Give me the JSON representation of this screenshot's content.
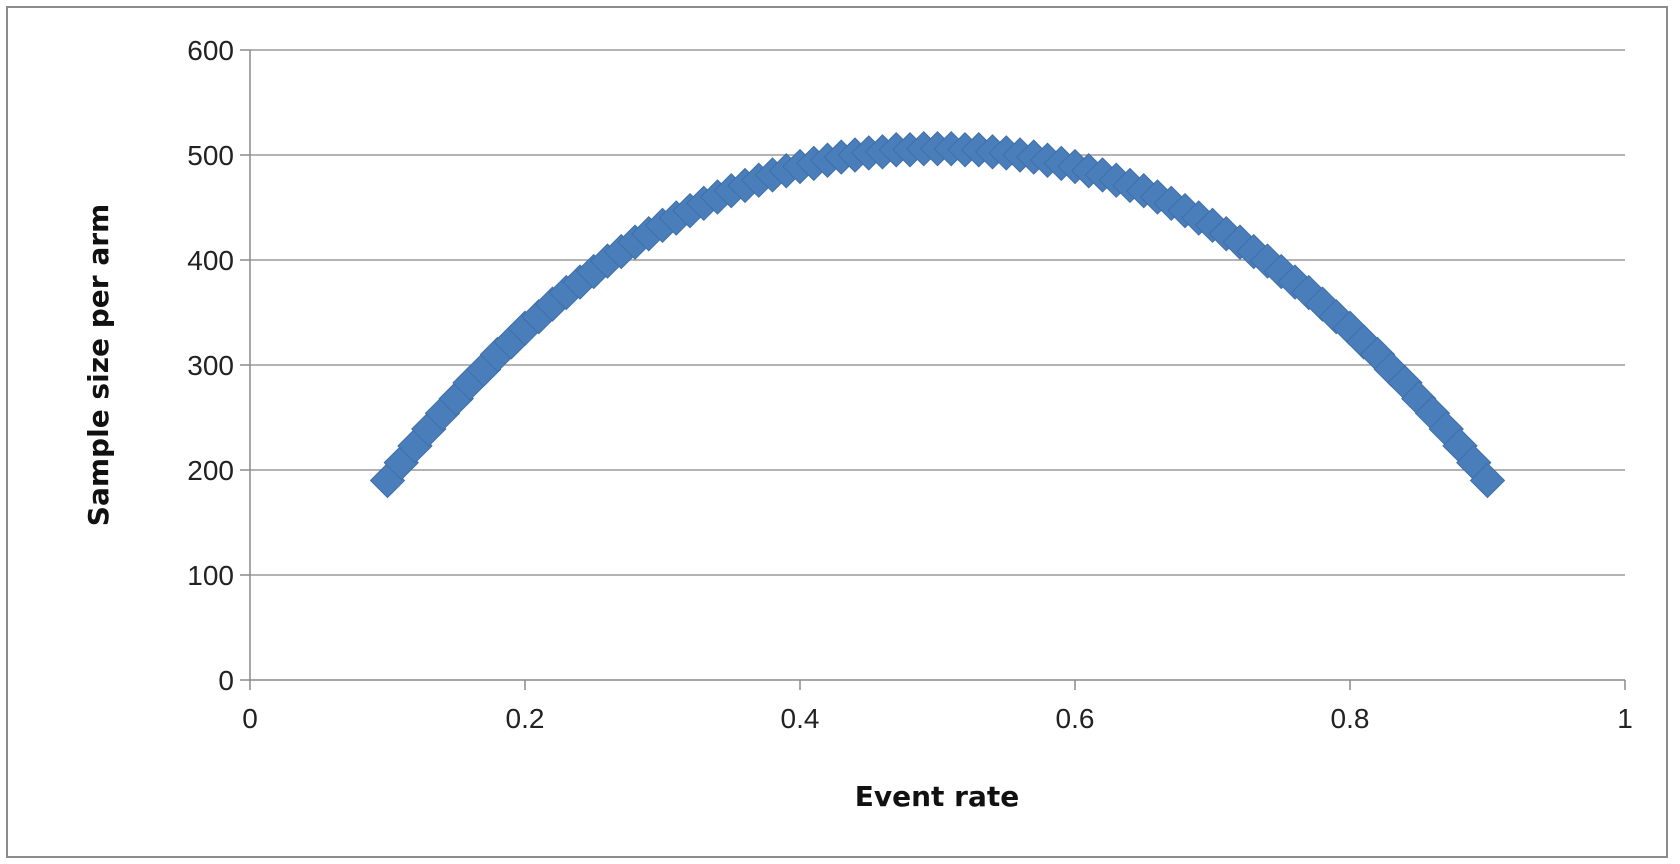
{
  "chart_data": {
    "type": "scatter",
    "title": "",
    "xlabel": "Event rate",
    "ylabel": "Sample size per arm",
    "xlim": [
      0,
      1
    ],
    "ylim": [
      0,
      600
    ],
    "x_ticks": [
      "0",
      "0.2",
      "0.4",
      "0.6",
      "0.8",
      "1"
    ],
    "y_ticks": [
      "0",
      "100",
      "200",
      "300",
      "400",
      "500",
      "600"
    ],
    "grid": "horizontal",
    "legend": "none",
    "marker": "diamond",
    "color": "#4a7ebb",
    "series": [
      {
        "x": [
          0.1,
          0.11,
          0.12,
          0.13,
          0.14,
          0.15,
          0.16,
          0.17,
          0.18,
          0.19,
          0.2,
          0.21,
          0.22,
          0.23,
          0.24,
          0.25,
          0.26,
          0.27,
          0.28,
          0.29,
          0.3,
          0.31,
          0.32,
          0.33,
          0.34,
          0.35,
          0.36,
          0.37,
          0.38,
          0.39,
          0.4,
          0.41,
          0.42,
          0.43,
          0.44,
          0.45,
          0.46,
          0.47,
          0.48,
          0.49,
          0.5,
          0.51,
          0.52,
          0.53,
          0.54,
          0.55,
          0.56,
          0.57,
          0.58,
          0.59,
          0.6,
          0.61,
          0.62,
          0.63,
          0.64,
          0.65,
          0.66,
          0.67,
          0.68,
          0.69,
          0.7,
          0.71,
          0.72,
          0.73,
          0.74,
          0.75,
          0.76,
          0.77,
          0.78,
          0.79,
          0.8,
          0.81,
          0.82,
          0.83,
          0.84,
          0.85,
          0.86,
          0.87,
          0.88,
          0.89,
          0.9
        ],
        "y": [
          190,
          207,
          223,
          239,
          254,
          268,
          283,
          296,
          310,
          322,
          335,
          346,
          358,
          369,
          379,
          389,
          399,
          408,
          417,
          425,
          433,
          440,
          447,
          454,
          460,
          466,
          471,
          476,
          481,
          485,
          489,
          492,
          495,
          498,
          500,
          502,
          503,
          505,
          505,
          506,
          506,
          506,
          505,
          505,
          503,
          502,
          500,
          498,
          495,
          492,
          489,
          485,
          481,
          476,
          471,
          466,
          460,
          454,
          447,
          440,
          433,
          425,
          417,
          408,
          399,
          389,
          379,
          369,
          358,
          346,
          335,
          322,
          310,
          296,
          283,
          268,
          254,
          239,
          223,
          207,
          190
        ]
      }
    ]
  }
}
